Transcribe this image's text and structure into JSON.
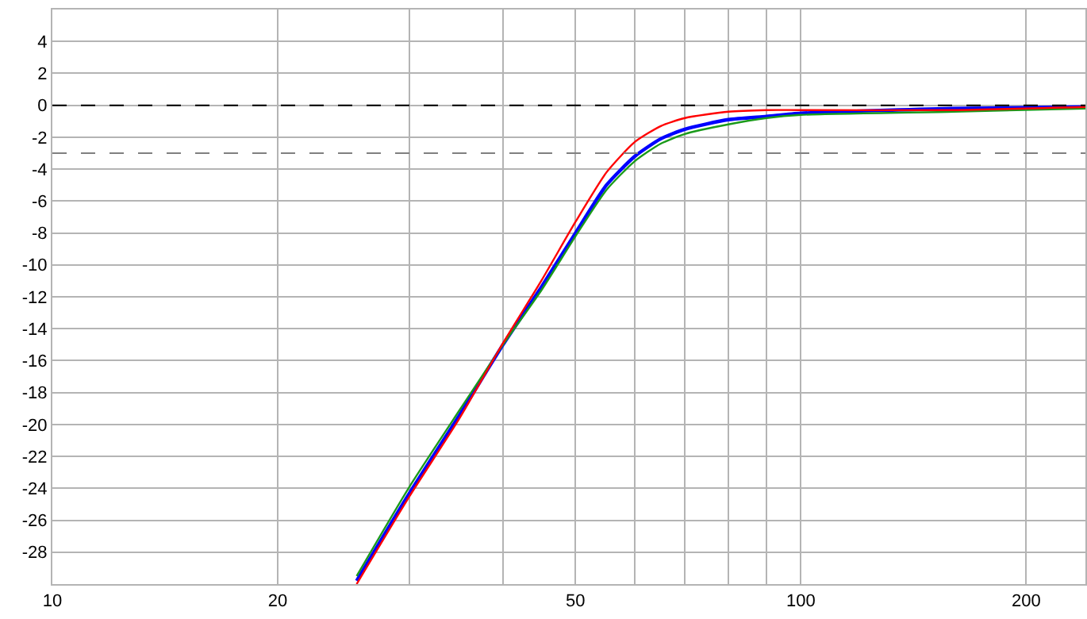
{
  "chart_data": {
    "type": "line",
    "log": "x",
    "grid": true,
    "marker": "none",
    "line_style": "solid",
    "x": [
      25.5,
      30,
      35,
      40,
      45,
      50,
      55,
      60,
      65,
      70,
      80,
      90,
      100,
      160,
      240
    ],
    "series": [
      {
        "color": "#ff0000",
        "values": [
          -30,
          -24.5,
          -19.6,
          -14.9,
          -11,
          -7.3,
          -4.2,
          -2.3,
          -1.3,
          -0.8,
          -0.4,
          -0.3,
          -0.3,
          -0.3,
          -0.1
        ]
      },
      {
        "color": "#0000ff",
        "values": [
          -29.8,
          -24.3,
          -19.4,
          -15,
          -11.4,
          -8,
          -5,
          -3.2,
          -2.1,
          -1.5,
          -0.9,
          -0.7,
          -0.5,
          -0.2,
          -0.1
        ]
      },
      {
        "color": "#1a9a1a",
        "values": [
          -29.5,
          -23.9,
          -19.1,
          -15,
          -11.6,
          -8.2,
          -5.3,
          -3.5,
          -2.4,
          -1.8,
          -1.2,
          -0.8,
          -0.6,
          -0.4,
          -0.2
        ]
      }
    ],
    "xlim": [
      10,
      240
    ],
    "xticks": [
      10,
      20,
      {
        "value": 30,
        "label": null
      },
      {
        "value": 40,
        "label": null
      },
      50,
      {
        "value": 60,
        "label": null
      },
      {
        "value": 70,
        "label": null
      },
      {
        "value": 80,
        "label": null
      },
      {
        "value": 90,
        "label": null
      },
      100,
      200
    ],
    "ylim": [
      -30,
      6
    ],
    "yticks": [
      -28,
      -26,
      -24,
      -22,
      -20,
      -18,
      -16,
      -14,
      -12,
      -10,
      -8,
      -6,
      -4,
      -2,
      0,
      2,
      4
    ],
    "ref_lines": [
      {
        "axis": "y",
        "value": 0,
        "color": "#000000",
        "line_style": "dashed"
      },
      {
        "axis": "y",
        "value": -3,
        "color": "#808080",
        "line_style": "dashed"
      }
    ]
  }
}
